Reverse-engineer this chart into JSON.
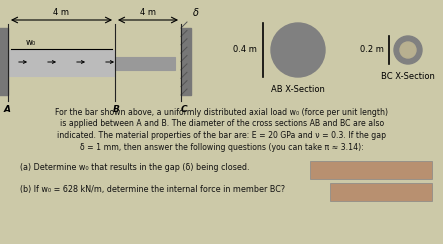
{
  "bg_color": "#ccc9a8",
  "bar_label_A": "A",
  "bar_label_B": "B",
  "bar_label_C": "C",
  "dim_label_4m_1": "4 m",
  "dim_label_4m_2": "4 m",
  "dim_label_delta": "δ",
  "w0_label": "w₀",
  "ab_xsec_label": "AB X-Section",
  "bc_xsec_label": "BC X-Section",
  "ab_dim": "0.4 m",
  "bc_dim": "0.2 m",
  "text_line1": "For the bar shown above, a uniformly distributed axial load w₀ (force per unit length)",
  "text_line2": "is applied between A and B. The diameter of the cross sections AB and BC are also",
  "text_line3": "indicated. The material properties of the bar are: E = 20 GPa and ν = 0.3. If the gap",
  "text_line4": "δ = 1 mm, then answer the following questions (you can take π ≈ 3.14):",
  "qa_label": "(a) Determine w₀ that results in the gap (δ) being closed.",
  "qb_label": "(b) If w₀ = 628 kN/m, determine the internal force in member BC?",
  "answer_box_color": "#b89070",
  "wall_color": "#777777",
  "hatch_color": "#555555",
  "bar_ab_color": "#bbbbbb",
  "bar_bc_color": "#999999",
  "bar_ab_edge": "#444444",
  "cross_section_fill": "#808080",
  "cross_section_inner": "#b8b090",
  "text_color": "#111111",
  "figw": 4.43,
  "figh": 2.44,
  "dpi": 100
}
